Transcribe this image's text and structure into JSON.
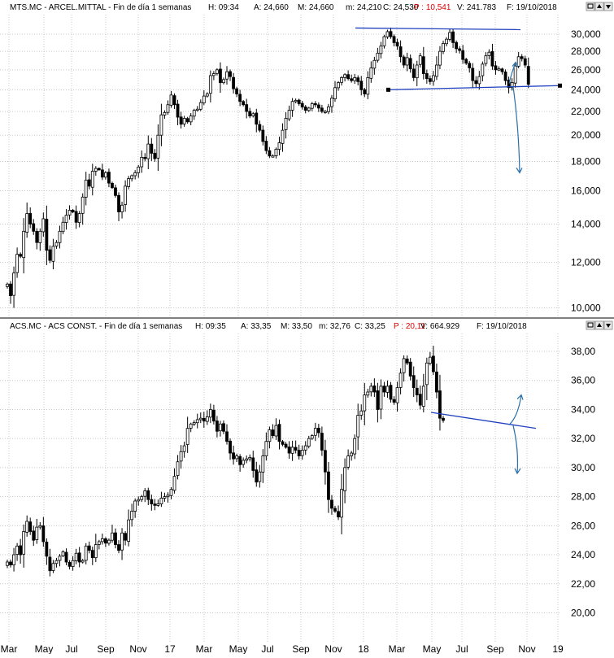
{
  "colors": {
    "candle": "#000000",
    "trend_line": "#1f3fbf",
    "arrow": "#2a6fa8",
    "grid": "#c8c8c8",
    "price_red": "#e00000"
  },
  "x_axis": {
    "labels": [
      "Mar",
      "May",
      "Jul",
      "Sep",
      "Nov",
      "17",
      "Mar",
      "May",
      "Jul",
      "Sep",
      "Nov",
      "18",
      "Mar",
      "May",
      "Jul",
      "Sep",
      "Nov",
      "19"
    ]
  },
  "chart_data": [
    {
      "type": "candlestick",
      "header": {
        "symbol": "MTS.MC - ARCEL.MITTAL - Fin de día 1 semanas",
        "time": "H: 09:34",
        "open": "A: 24,660",
        "high": "M: 24,660",
        "low": "m: 24,210",
        "close": "C: 24,530",
        "pvalue": "P : 10,541",
        "volume": "V: 241.783",
        "date": "F: 19/10/2018"
      },
      "y_axis": {
        "scale": "log",
        "range": [
          9.6,
          32.2
        ],
        "ticks": [
          "10,000",
          "12,000",
          "14,000",
          "16,000",
          "18,000",
          "20,000",
          "22,000",
          "24,000",
          "26,000",
          "28,000",
          "30,000"
        ]
      },
      "grid": true,
      "series_closes": [
        11.0,
        10.5,
        11.5,
        12.4,
        12.3,
        13.6,
        14.6,
        14.0,
        13.6,
        13.0,
        13.6,
        14.3,
        12.6,
        12.1,
        12.8,
        13.0,
        13.6,
        14.1,
        14.5,
        14.8,
        14.7,
        14.1,
        14.6,
        15.6,
        16.7,
        16.3,
        17.3,
        17.5,
        17.4,
        16.9,
        17.2,
        16.5,
        16.2,
        15.7,
        14.7,
        15.1,
        16.3,
        16.8,
        17.0,
        17.2,
        17.6,
        18.3,
        18.2,
        19.3,
        18.6,
        18.2,
        20.0,
        21.7,
        21.9,
        22.6,
        23.5,
        22.6,
        21.5,
        20.9,
        21.4,
        21.1,
        21.6,
        22.1,
        22.2,
        22.8,
        23.4,
        23.6,
        25.4,
        25.6,
        26.0,
        24.7,
        25.0,
        25.8,
        25.3,
        24.1,
        23.6,
        22.9,
        22.6,
        22.0,
        21.6,
        21.8,
        20.9,
        20.4,
        19.5,
        18.8,
        18.4,
        18.4,
        18.9,
        19.4,
        20.4,
        21.4,
        22.1,
        22.9,
        23.0,
        22.7,
        22.4,
        22.1,
        22.3,
        22.7,
        22.6,
        22.3,
        22.0,
        22.0,
        22.4,
        23.2,
        24.2,
        24.7,
        25.2,
        25.5,
        25.1,
        24.9,
        25.2,
        24.8,
        24.0,
        23.6,
        25.2,
        26.2,
        27.0,
        27.8,
        28.6,
        29.7,
        30.3,
        29.7,
        29.0,
        28.6,
        27.4,
        26.5,
        27.3,
        26.1,
        25.2,
        26.5,
        27.5,
        25.6,
        25.1,
        24.8,
        25.4,
        26.5,
        28.0,
        28.9,
        29.4,
        30.2,
        29.0,
        28.3,
        28.1,
        27.1,
        26.7,
        26.2,
        24.9,
        24.6,
        25.3,
        26.6,
        27.5,
        27.9,
        26.4,
        26.0,
        26.1,
        25.8,
        24.9,
        24.2,
        24.7,
        26.4,
        27.4,
        27.2,
        26.5,
        24.53
      ],
      "annotations": {
        "resistance_line": {
          "from": [
            "Nov 17",
            30.6
          ],
          "to": [
            "Oct 18",
            30.6
          ]
        },
        "support_line": {
          "from": [
            "Mar 18",
            24.0
          ],
          "to": [
            "Dec 18",
            24.4
          ]
        },
        "arrow_up_target": 26.8,
        "arrow_down_target": 17.2
      }
    },
    {
      "type": "candlestick",
      "header": {
        "symbol": "ACS.MC - ACS CONST. - Fin de día 1 semanas",
        "time": "H: 09:35",
        "open": "A: 33,35",
        "high": "M: 33,50",
        "low": "m: 32,76",
        "close": "C: 33,25",
        "pvalue": "P : 20,11",
        "volume": "V: 664.929",
        "date": "F: 19/10/2018"
      },
      "y_axis": {
        "scale": "linear",
        "range": [
          19.0,
          39.0
        ],
        "ticks": [
          "20,00",
          "22,00",
          "24,00",
          "26,00",
          "28,00",
          "30,00",
          "32,00",
          "34,00",
          "36,00",
          "38,00"
        ]
      },
      "grid": true,
      "series_closes": [
        23.5,
        23.3,
        24.0,
        24.6,
        24.0,
        25.6,
        26.3,
        25.6,
        25.0,
        25.9,
        26.0,
        24.9,
        23.9,
        22.9,
        23.4,
        23.6,
        23.9,
        24.2,
        23.5,
        23.2,
        23.6,
        24.1,
        23.5,
        23.6,
        24.6,
        24.3,
        23.8,
        24.7,
        24.9,
        25.1,
        24.8,
        25.0,
        25.5,
        24.7,
        24.3,
        25.5,
        25.0,
        26.4,
        27.0,
        27.7,
        27.8,
        28.0,
        28.4,
        27.8,
        27.5,
        27.4,
        27.5,
        27.9,
        28.0,
        28.1,
        28.5,
        29.4,
        30.4,
        31.1,
        31.5,
        32.7,
        33.0,
        33.1,
        33.3,
        33.4,
        33.2,
        33.5,
        34.0,
        33.2,
        32.5,
        33.0,
        32.5,
        31.8,
        31.0,
        30.6,
        30.8,
        30.2,
        30.5,
        30.6,
        30.7,
        29.8,
        29.0,
        29.7,
        30.8,
        31.8,
        32.6,
        32.2,
        32.9,
        31.8,
        31.6,
        31.4,
        31.0,
        31.4,
        31.2,
        30.8,
        31.2,
        31.5,
        32.0,
        32.2,
        32.7,
        32.4,
        31.2,
        29.7,
        27.8,
        27.2,
        27.0,
        26.6,
        28.5,
        30.0,
        30.8,
        31.0,
        32.0,
        33.6,
        33.9,
        35.0,
        35.2,
        35.6,
        35.2,
        34.0,
        35.6,
        35.2,
        35.6,
        34.7,
        34.5,
        35.5,
        36.5,
        37.5,
        37.2,
        36.3,
        35.5,
        35.0,
        34.3,
        35.6,
        37.2,
        37.6,
        36.6,
        35.2,
        33.4,
        33.25
      ],
      "annotations": {
        "support_line": {
          "from": [
            "May 18",
            33.8
          ],
          "to": [
            "Nov 18",
            32.7
          ]
        },
        "arrow_up_target": 35.0,
        "arrow_down_target": 29.6
      }
    }
  ]
}
